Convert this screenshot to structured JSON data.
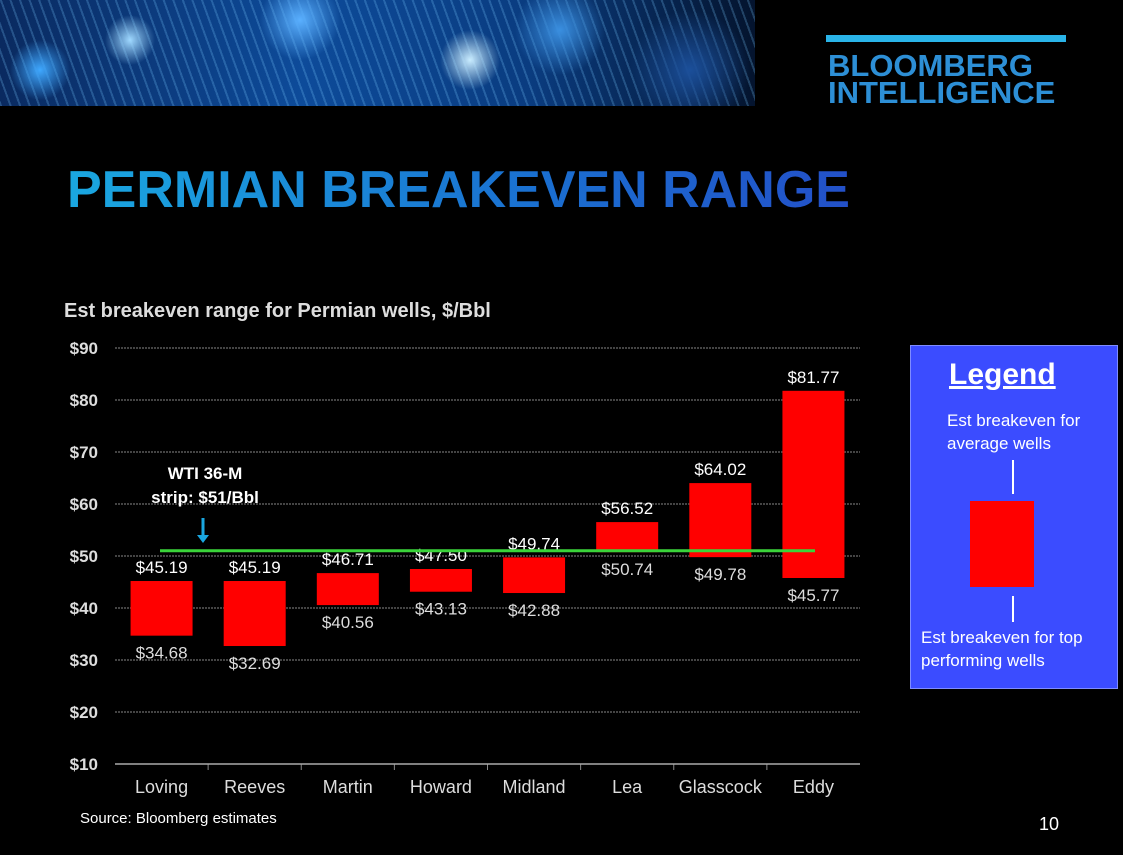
{
  "header": {
    "logo_line1": "BLOOMBERG",
    "logo_line2": "INTELLIGENCE",
    "title": "PERMIAN BREAKEVEN RANGE"
  },
  "annotation": {
    "wti_line1": "WTI 36-M",
    "wti_line2": "strip: $51/Bbl"
  },
  "legend": {
    "title": "Legend",
    "avg_label": "Est breakeven for average wells",
    "top_label": "Est breakeven for top performing wells"
  },
  "footer": {
    "source": "Source: Bloomberg estimates",
    "page": "10"
  },
  "colors": {
    "bar": "#ff0000",
    "strip": "#3ad43a",
    "arrow": "#1aa7e0"
  },
  "chart_data": {
    "type": "bar",
    "subtype": "floating-range",
    "title": "Est breakeven range for Permian wells, $/Bbl",
    "categories": [
      "Loving",
      "Reeves",
      "Martin",
      "Howard",
      "Midland",
      "Lea",
      "Glasscock",
      "Eddy"
    ],
    "series": [
      {
        "name": "Est breakeven for average wells",
        "values": [
          45.19,
          45.19,
          46.71,
          47.5,
          49.74,
          56.52,
          64.02,
          81.77
        ]
      },
      {
        "name": "Est breakeven for top performing wells",
        "values": [
          34.68,
          32.69,
          40.56,
          43.13,
          42.88,
          50.74,
          49.78,
          45.77
        ]
      }
    ],
    "high_labels": [
      "$45.19",
      "$45.19",
      "$46.71",
      "$47.50",
      "$49.74",
      "$56.52",
      "$64.02",
      "$81.77"
    ],
    "low_labels": [
      "$34.68",
      "$32.69",
      "$40.56",
      "$43.13",
      "$42.88",
      "$50.74",
      "$49.78",
      "$45.77"
    ],
    "reference_line": {
      "label": "WTI 36-M strip: $51/Bbl",
      "value": 51
    },
    "ylim": [
      10,
      90
    ],
    "yticks": [
      "$10",
      "$20",
      "$30",
      "$40",
      "$50",
      "$60",
      "$70",
      "$80",
      "$90"
    ],
    "ytick_values": [
      10,
      20,
      30,
      40,
      50,
      60,
      70,
      80,
      90
    ],
    "grid": true,
    "legend": "right"
  }
}
